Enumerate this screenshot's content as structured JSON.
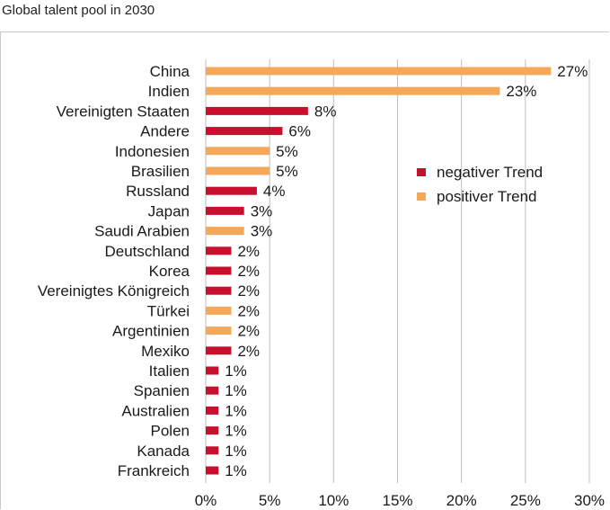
{
  "page": {
    "title": "Global talent pool in 2030"
  },
  "colors": {
    "negativ": "#c8102e",
    "positiv": "#f5a85a",
    "grid": "#bfbfbf"
  },
  "legend": {
    "position": "right",
    "items": [
      {
        "label": "negativer Trend",
        "color_key": "negativ"
      },
      {
        "label": "positiver Trend",
        "color_key": "positiv"
      }
    ]
  },
  "chart_data": {
    "type": "bar",
    "orientation": "horizontal",
    "xlim": [
      0,
      30
    ],
    "x_ticks": [
      0,
      5,
      10,
      15,
      20,
      25,
      30
    ],
    "x_tick_labels": [
      "0%",
      "5%",
      "10%",
      "15%",
      "20%",
      "25%",
      "30%"
    ],
    "grid": true,
    "categories": [
      "China",
      "Indien",
      "Vereinigten Staaten",
      "Andere",
      "Indonesien",
      "Brasilien",
      "Russland",
      "Japan",
      "Saudi Arabien",
      "Deutschland",
      "Korea",
      "Vereinigtes Königreich",
      "Türkei",
      "Argentinien",
      "Mexiko",
      "Italien",
      "Spanien",
      "Australien",
      "Polen",
      "Kanada",
      "Frankreich"
    ],
    "values": [
      27,
      23,
      8,
      6,
      5,
      5,
      4,
      3,
      3,
      2,
      2,
      2,
      2,
      2,
      2,
      1,
      1,
      1,
      1,
      1,
      1
    ],
    "value_labels": [
      "27%",
      "23%",
      "8%",
      "6%",
      "5%",
      "5%",
      "4%",
      "3%",
      "3%",
      "2%",
      "2%",
      "2%",
      "2%",
      "2%",
      "2%",
      "1%",
      "1%",
      "1%",
      "1%",
      "1%",
      "1%"
    ],
    "trend": [
      "positiv",
      "positiv",
      "negativ",
      "negativ",
      "positiv",
      "positiv",
      "negativ",
      "negativ",
      "positiv",
      "negativ",
      "negativ",
      "negativ",
      "positiv",
      "positiv",
      "negativ",
      "negativ",
      "negativ",
      "negativ",
      "negativ",
      "negativ",
      "negativ"
    ]
  }
}
